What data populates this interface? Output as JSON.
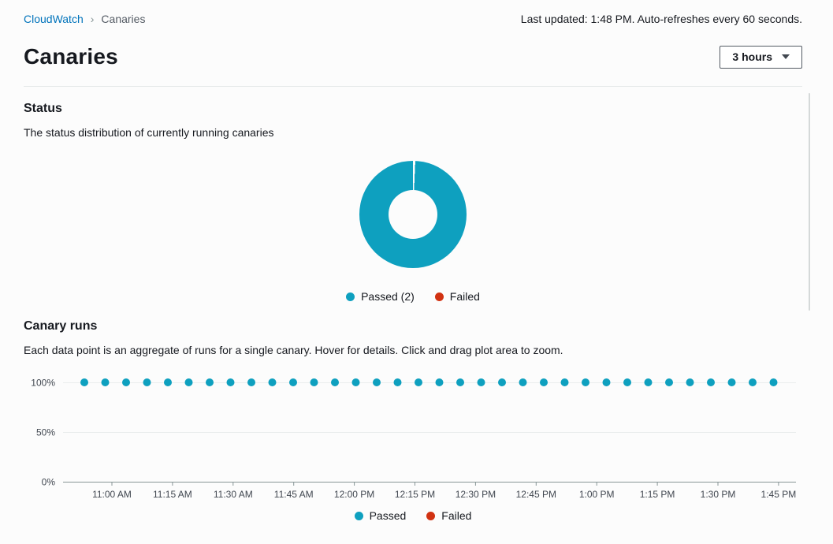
{
  "breadcrumb": {
    "root": "CloudWatch",
    "current": "Canaries"
  },
  "topbar": {
    "last_updated": "Last updated: 1:48 PM. Auto-refreshes every 60 seconds."
  },
  "header": {
    "title": "Canaries",
    "time_range": "3 hours"
  },
  "status": {
    "title": "Status",
    "subtitle": "The status distribution of currently running canaries",
    "legend": [
      {
        "label": "Passed (2)",
        "color": "#0ea0bf"
      },
      {
        "label": "Failed",
        "color": "#d13212"
      }
    ]
  },
  "runs": {
    "title": "Canary runs",
    "subtitle": "Each data point is an aggregate of runs for a single canary. Hover for details. Click and drag plot area to zoom.",
    "legend": [
      {
        "label": "Passed",
        "color": "#0ea0bf"
      },
      {
        "label": "Failed",
        "color": "#d13212"
      }
    ]
  },
  "chart_data": [
    {
      "type": "pie",
      "title": "Status",
      "donut": true,
      "legend_position": "bottom",
      "slices": [
        {
          "label": "Passed",
          "value": 2,
          "color": "#0ea0bf"
        },
        {
          "label": "Failed",
          "value": 0,
          "color": "#d13212"
        }
      ]
    },
    {
      "type": "scatter",
      "title": "Canary runs",
      "ylim": [
        0,
        100
      ],
      "grid": true,
      "legend_position": "bottom",
      "yticks": [
        {
          "label": "100%",
          "value": 100
        },
        {
          "label": "50%",
          "value": 50
        },
        {
          "label": "0%",
          "value": 0
        }
      ],
      "xticks": [
        "11:00 AM",
        "11:15 AM",
        "11:30 AM",
        "11:45 AM",
        "12:00 PM",
        "12:15 PM",
        "12:30 PM",
        "12:45 PM",
        "1:00 PM",
        "1:15 PM",
        "1:30 PM",
        "1:45 PM"
      ],
      "series": [
        {
          "name": "Passed",
          "color": "#0ea0bf",
          "values_percent": [
            100,
            100,
            100,
            100,
            100,
            100,
            100,
            100,
            100,
            100,
            100,
            100,
            100,
            100,
            100,
            100,
            100,
            100,
            100,
            100,
            100,
            100,
            100,
            100,
            100,
            100,
            100,
            100,
            100,
            100,
            100,
            100,
            100,
            100
          ]
        },
        {
          "name": "Failed",
          "color": "#d13212",
          "values_percent": []
        }
      ]
    }
  ]
}
